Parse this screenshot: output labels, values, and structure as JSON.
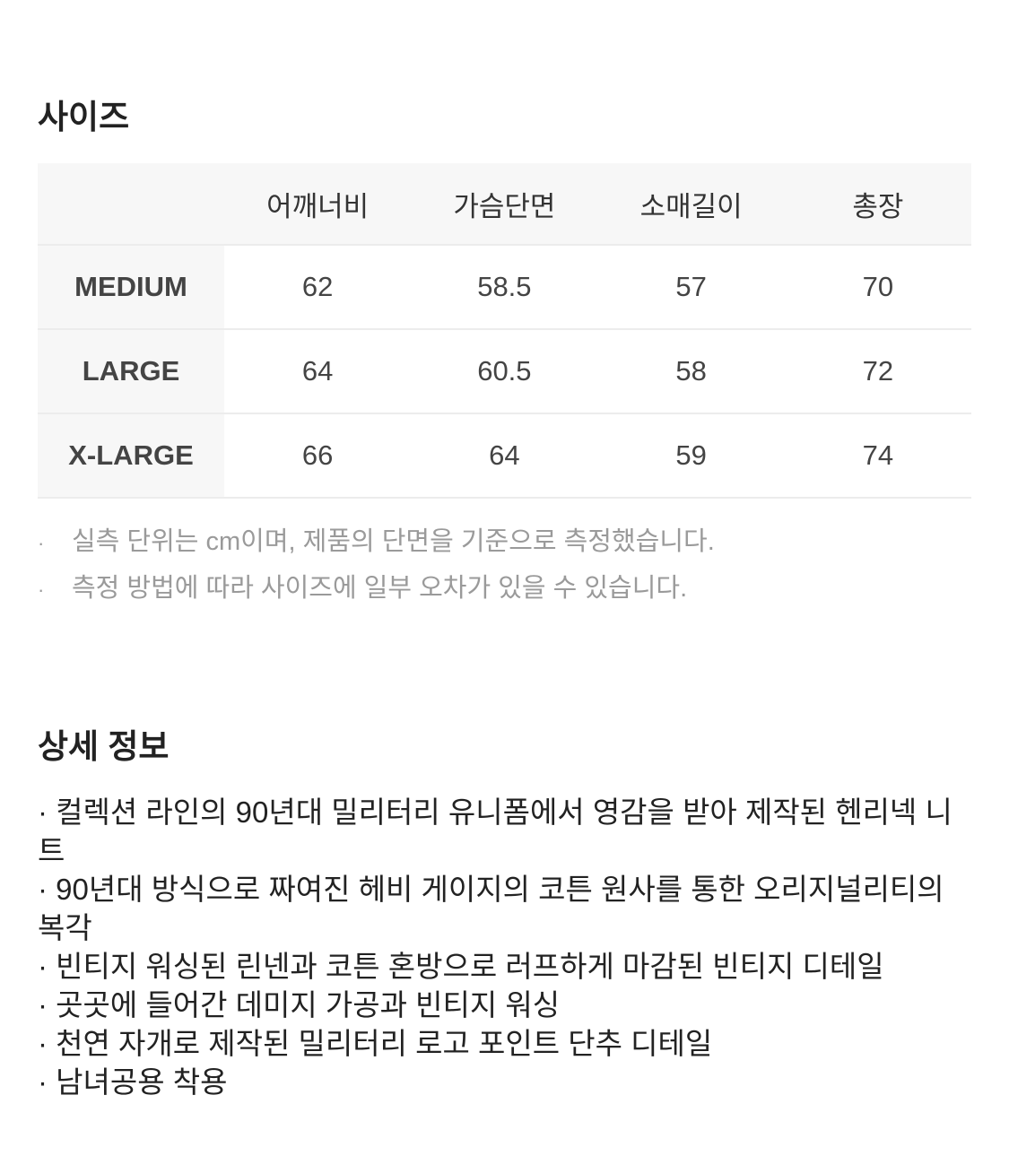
{
  "size_section": {
    "title": "사이즈",
    "columns": [
      "",
      "어깨너비",
      "가슴단면",
      "소매길이",
      "총장"
    ],
    "rows": [
      {
        "size": "MEDIUM",
        "values": [
          "62",
          "58.5",
          "57",
          "70"
        ]
      },
      {
        "size": "LARGE",
        "values": [
          "64",
          "60.5",
          "58",
          "72"
        ]
      },
      {
        "size": "X-LARGE",
        "values": [
          "66",
          "64",
          "59",
          "74"
        ]
      }
    ],
    "bullet": "·",
    "notes": [
      "실측 단위는 cm이며, 제품의 단면을 기준으로 측정했습니다.",
      "측정 방법에 따라 사이즈에 일부 오차가 있을 수 있습니다."
    ]
  },
  "detail_section": {
    "title": "상세 정보",
    "items": [
      " · 컬렉션 라인의 90년대 밀리터리 유니폼에서 영감을 받아 제작된 헨리넥 니트",
      " · 90년대 방식으로 짜여진 헤비 게이지의 코튼 원사를 통한 오리지널리티의 복각",
      " · 빈티지 워싱된 린넨과 코튼 혼방으로 러프하게 마감된 빈티지 디테일",
      " · 곳곳에 들어간 데미지 가공과 빈티지 워싱",
      " · 천연 자개로 제작된 밀리터리 로고 포인트 단추 디테일",
      " · 남녀공용 착용"
    ]
  }
}
